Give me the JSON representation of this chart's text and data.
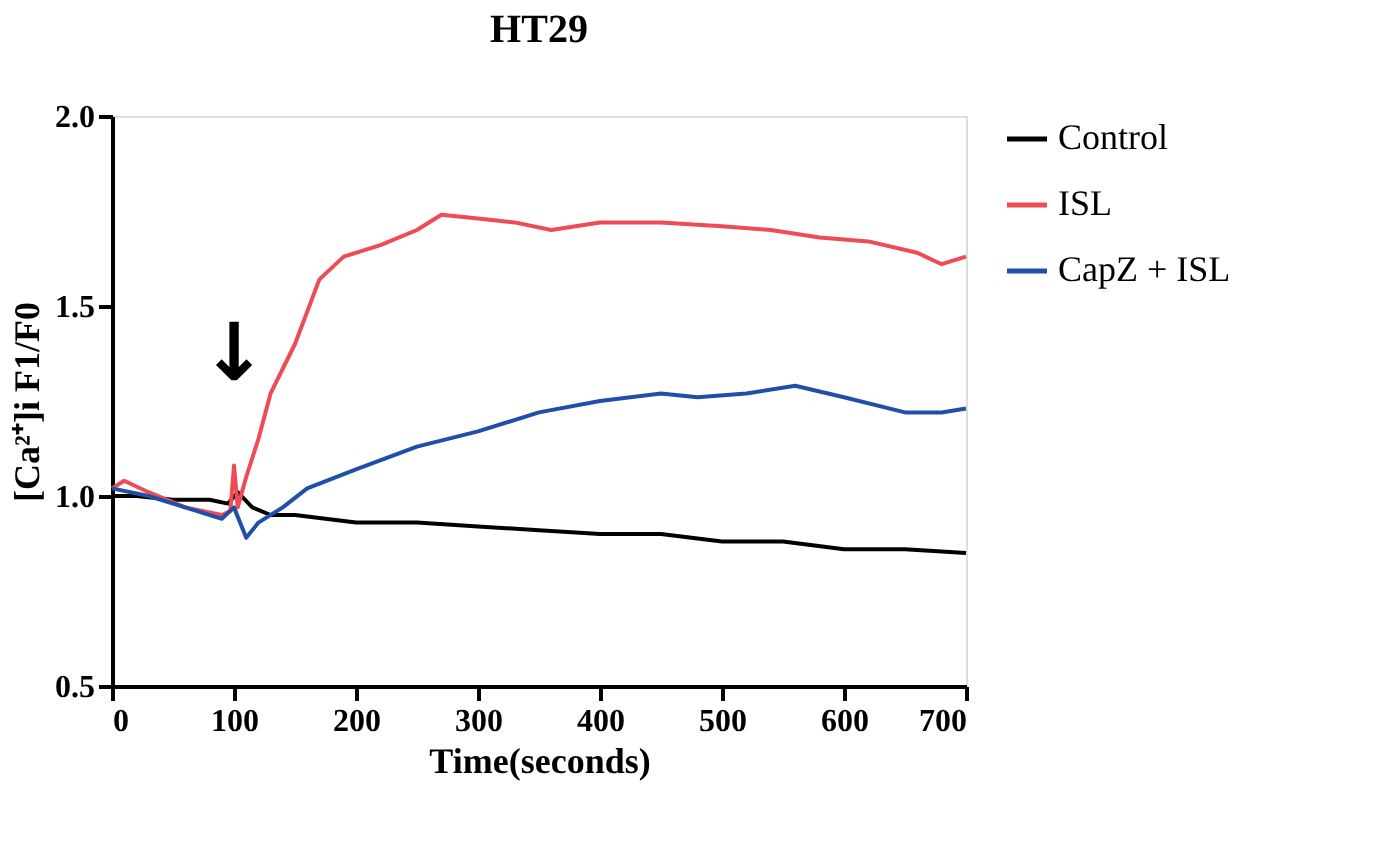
{
  "chart_data": {
    "type": "line",
    "title": "HT29",
    "xlabel": "Time(seconds)",
    "ylabel": "[Ca²⁺]i F1/F0",
    "xlim": [
      0,
      700
    ],
    "xticks": [
      0,
      100,
      200,
      300,
      400,
      500,
      600,
      700
    ],
    "ylim": [
      0.5,
      2.0
    ],
    "yticks": [
      0.5,
      {
        "value": 1,
        "label": "1.0"
      },
      1.5,
      {
        "value": 2,
        "label": "2.0"
      }
    ],
    "grid": false,
    "legend": "top right",
    "marker": "none",
    "line_style": "solid",
    "series": [
      {
        "name": "Control",
        "color": "#000000",
        "x": [
          0,
          20,
          50,
          80,
          95,
          103,
          115,
          130,
          150,
          200,
          250,
          300,
          350,
          400,
          450,
          500,
          550,
          600,
          650,
          700
        ],
        "values": [
          1.0,
          1.0,
          0.99,
          0.99,
          0.98,
          1.01,
          0.97,
          0.95,
          0.95,
          0.93,
          0.93,
          0.92,
          0.91,
          0.9,
          0.9,
          0.88,
          0.88,
          0.86,
          0.86,
          0.85
        ]
      },
      {
        "name": "ISL",
        "color": "#ee4b55",
        "x": [
          0,
          10,
          30,
          60,
          90,
          97,
          100,
          103,
          110,
          120,
          130,
          150,
          170,
          190,
          220,
          250,
          270,
          300,
          330,
          360,
          400,
          450,
          500,
          540,
          580,
          620,
          660,
          680,
          700
        ],
        "values": [
          1.02,
          1.04,
          1.01,
          0.97,
          0.95,
          0.96,
          1.08,
          0.97,
          1.05,
          1.15,
          1.27,
          1.4,
          1.57,
          1.63,
          1.66,
          1.7,
          1.74,
          1.73,
          1.72,
          1.7,
          1.72,
          1.72,
          1.71,
          1.7,
          1.68,
          1.67,
          1.64,
          1.61,
          1.63
        ]
      },
      {
        "name": "CapZ + ISL",
        "color": "#1f4fa8",
        "x": [
          0,
          30,
          60,
          90,
          100,
          110,
          120,
          140,
          160,
          200,
          250,
          300,
          350,
          400,
          450,
          480,
          520,
          560,
          600,
          650,
          680,
          700
        ],
        "values": [
          1.02,
          1.0,
          0.97,
          0.94,
          0.97,
          0.89,
          0.93,
          0.97,
          1.02,
          1.07,
          1.13,
          1.17,
          1.22,
          1.25,
          1.27,
          1.26,
          1.27,
          1.29,
          1.26,
          1.22,
          1.22,
          1.23
        ]
      }
    ],
    "annotations": [
      "↓"
    ]
  }
}
